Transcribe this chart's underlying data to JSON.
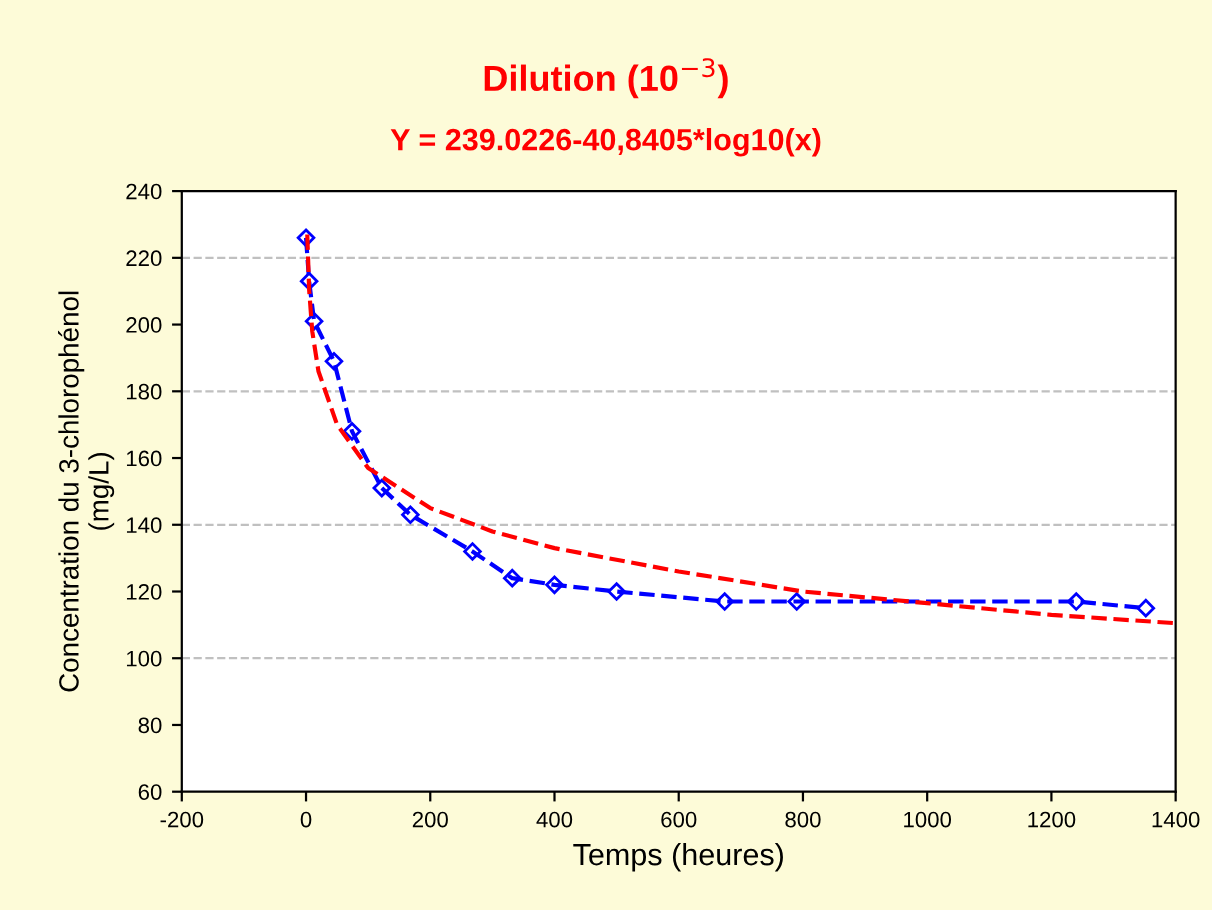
{
  "chart_data": {
    "type": "line",
    "title": "Dilution (10$^{−3}$)",
    "subtitle": "Y = 239.0226-40,8405*log10(x)",
    "xlabel": "Temps (heures)",
    "ylabel": "Concentration du 3-chlorophénol\n(mg/L)",
    "xlim": [
      -200,
      1400
    ],
    "xticks": [
      -200,
      0,
      200,
      400,
      600,
      800,
      1000,
      1200,
      1400
    ],
    "ylim": [
      60,
      240
    ],
    "yticks": [
      60,
      80,
      100,
      120,
      140,
      160,
      180,
      200,
      220,
      240
    ],
    "grid": "y",
    "legend": false,
    "series": [
      {
        "color": "#0000ff",
        "marker": "diamond",
        "line_style": "dashed",
        "x": [
          0,
          5,
          13,
          45,
          74,
          122,
          168,
          268,
          332,
          400,
          500,
          674,
          790,
          1240,
          1352
        ],
        "values": [
          226,
          213,
          201,
          189,
          168,
          151,
          143,
          132,
          124,
          122,
          120,
          117,
          117,
          117,
          115
        ]
      },
      {
        "color": "#ff0000",
        "marker": "none",
        "line_style": "dashed",
        "x": [
          2,
          5,
          10,
          20,
          50,
          100,
          200,
          300,
          400,
          600,
          800,
          1000,
          1200,
          1400
        ],
        "values": [
          227,
          210.5,
          198,
          186,
          170,
          157,
          145,
          138,
          133,
          126,
          120,
          116.5,
          113,
          110.5
        ]
      }
    ]
  }
}
